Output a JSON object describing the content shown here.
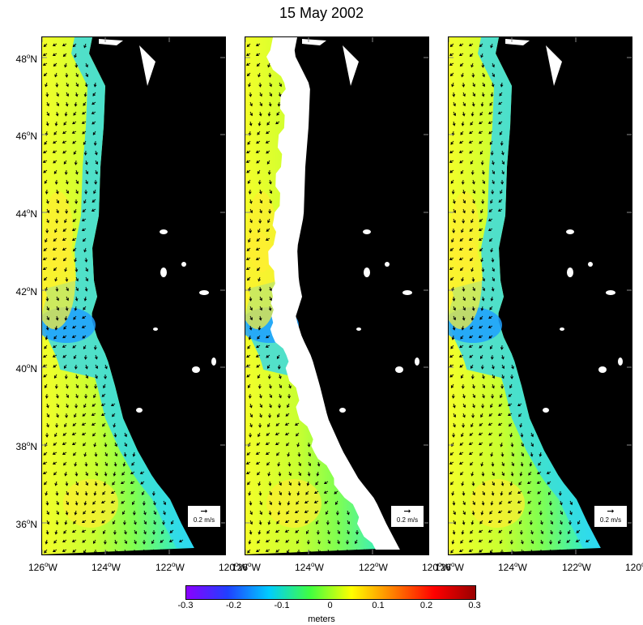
{
  "title": "15 May 2002",
  "y_axis_labels": [
    {
      "deg": "48",
      "hemi": "N"
    },
    {
      "deg": "46",
      "hemi": "N"
    },
    {
      "deg": "44",
      "hemi": "N"
    },
    {
      "deg": "42",
      "hemi": "N"
    },
    {
      "deg": "40",
      "hemi": "N"
    },
    {
      "deg": "38",
      "hemi": "N"
    },
    {
      "deg": "36",
      "hemi": "N"
    }
  ],
  "x_axis_labels": [
    {
      "deg": "126",
      "hemi": "W"
    },
    {
      "deg": "124",
      "hemi": "W"
    },
    {
      "deg": "122",
      "hemi": "W"
    },
    {
      "deg": "120",
      "hemi": "W"
    }
  ],
  "panels": [
    {
      "id": "left",
      "coastal_gap": false
    },
    {
      "id": "middle",
      "coastal_gap": true
    },
    {
      "id": "right",
      "coastal_gap": false
    }
  ],
  "scale_arrow": {
    "label": "0.2 m/s"
  },
  "colorbar": {
    "ticks": [
      "-0.3",
      "-0.2",
      "-0.1",
      "0",
      "0.1",
      "0.2",
      "0.3"
    ],
    "label": "meters",
    "min": -0.3,
    "max": 0.3,
    "colors": [
      "#8b00ff",
      "#2040ff",
      "#00ccff",
      "#40ff40",
      "#ffff00",
      "#ff8000",
      "#ff0000",
      "#990000"
    ]
  },
  "land_color": "#000000"
}
